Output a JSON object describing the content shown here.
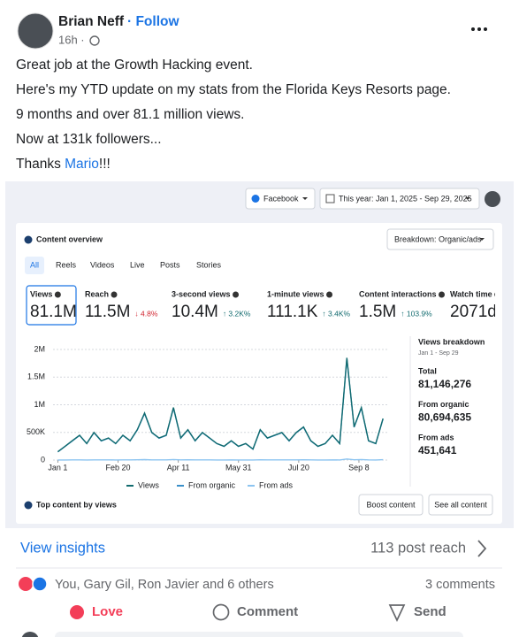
{
  "post": {
    "author": "Brian Neff",
    "follow": "· Follow",
    "time": "16h ·",
    "lines": [
      "Great job at the Growth Hacking event.",
      "Here's my YTD update on my stats from the Florida Keys Resorts page.",
      "9 months and over 81.1 million views.",
      "Now at 131k followers..."
    ],
    "last_line": {
      "prefix": "Thanks ",
      "mention": "Mario",
      "suffix": "!!!"
    }
  },
  "insights": {
    "source": "Facebook",
    "date_range": "This year: Jan 1, 2025 - Sep 29, 2025",
    "title": "Content overview",
    "breakdown": "Breakdown: Organic/ads",
    "tabs": [
      "All",
      "Reels",
      "Videos",
      "Live",
      "Posts",
      "Stories"
    ],
    "metrics": [
      {
        "label": "Views",
        "value": "81.1M"
      },
      {
        "label": "Reach",
        "value": "11.5M",
        "change": "↓ 4.8%"
      },
      {
        "label": "3-second views",
        "value": "10.4M",
        "change": "↑ 3.2K%"
      },
      {
        "label": "1-minute views",
        "value": "111.1K",
        "change": "↑ 3.4K%"
      },
      {
        "label": "Content interactions",
        "value": "1.5M",
        "change": "↑ 103.9%"
      },
      {
        "label": "Watch time",
        "value": "2071d"
      }
    ],
    "footer_title": "Top content by views",
    "buttons": [
      "Boost content",
      "See all content"
    ]
  },
  "chart_data": {
    "type": "line",
    "x": [
      0,
      6,
      12,
      18,
      24,
      30,
      36,
      42,
      48,
      54,
      60,
      66,
      72,
      78,
      84,
      90,
      96,
      102,
      108,
      114,
      120,
      126,
      132,
      138,
      144,
      150,
      156,
      162,
      168,
      174,
      180,
      186,
      192,
      198,
      204,
      210,
      216,
      222,
      228,
      234,
      240,
      246,
      252,
      258,
      264,
      270
    ],
    "series": [
      {
        "name": "From ads",
        "color": "#8cc4f0",
        "values": [
          2000,
          2000,
          3000,
          3000,
          2000,
          4000,
          3000,
          3000,
          2000,
          4000,
          3000,
          5000,
          8000,
          4000,
          3000,
          4000,
          9000,
          3000,
          5000,
          3000,
          4000,
          3000,
          2000,
          2000,
          3000,
          2000,
          2000,
          2000,
          5000,
          3000,
          4000,
          4000,
          3000,
          4000,
          5000,
          3000,
          2000,
          2000,
          4000,
          2000,
          20000,
          5000,
          9000,
          3000,
          2000,
          7000
        ]
      },
      {
        "name": "From organic",
        "color": "#3a8fc9",
        "values": [
          148000,
          247000,
          346000,
          445000,
          297000,
          495000,
          346000,
          396000,
          297000,
          445000,
          346000,
          544000,
          840000,
          495000,
          396000,
          445000,
          940000,
          396000,
          544000,
          346000,
          495000,
          396000,
          297000,
          247000,
          346000,
          247000,
          297000,
          197000,
          544000,
          396000,
          445000,
          495000,
          346000,
          495000,
          594000,
          346000,
          247000,
          297000,
          445000,
          297000,
          1830000,
          594000,
          940000,
          346000,
          297000,
          742000
        ]
      },
      {
        "name": "Views",
        "color": "#126b6f",
        "values": [
          150000,
          250000,
          350000,
          450000,
          300000,
          500000,
          350000,
          400000,
          300000,
          450000,
          350000,
          550000,
          850000,
          500000,
          400000,
          450000,
          950000,
          400000,
          550000,
          350000,
          500000,
          400000,
          300000,
          250000,
          350000,
          250000,
          300000,
          200000,
          550000,
          400000,
          450000,
          500000,
          350000,
          500000,
          600000,
          350000,
          250000,
          300000,
          450000,
          300000,
          1850000,
          600000,
          950000,
          350000,
          300000,
          750000
        ]
      }
    ],
    "xlim": [
      -4,
      275
    ],
    "ylim": [
      0,
      2000000
    ],
    "xticks": [
      {
        "value": 0,
        "label": "Jan 1"
      },
      {
        "value": 50,
        "label": "Feb 20"
      },
      {
        "value": 100,
        "label": "Apr 11"
      },
      {
        "value": 150,
        "label": "May 31"
      },
      {
        "value": 200,
        "label": "Jul 20"
      },
      {
        "value": 250,
        "label": "Sep 8"
      }
    ],
    "yticks": [
      0,
      {
        "value": 500000,
        "label": "500K"
      },
      {
        "value": 1000000,
        "label": "1M"
      },
      {
        "value": 1500000,
        "label": "1.5M"
      },
      {
        "value": 2000000,
        "label": "2M"
      }
    ],
    "grid": true,
    "legend": "bottom"
  },
  "breakdown": {
    "title": "Views breakdown",
    "range": "Jan 1 - Sep 29",
    "items": [
      {
        "label": "Total",
        "value": "81,146,276"
      },
      {
        "label": "From organic",
        "value": "80,694,635"
      },
      {
        "label": "From ads",
        "value": "451,641"
      }
    ]
  },
  "footer": {
    "view_insights": "View insights",
    "post_reach": "113 post reach",
    "reactions": "You, Gary Gil, Ron Javier and 6 others",
    "comments": "3 comments",
    "actions": [
      "Love",
      "Comment",
      "Send"
    ]
  }
}
